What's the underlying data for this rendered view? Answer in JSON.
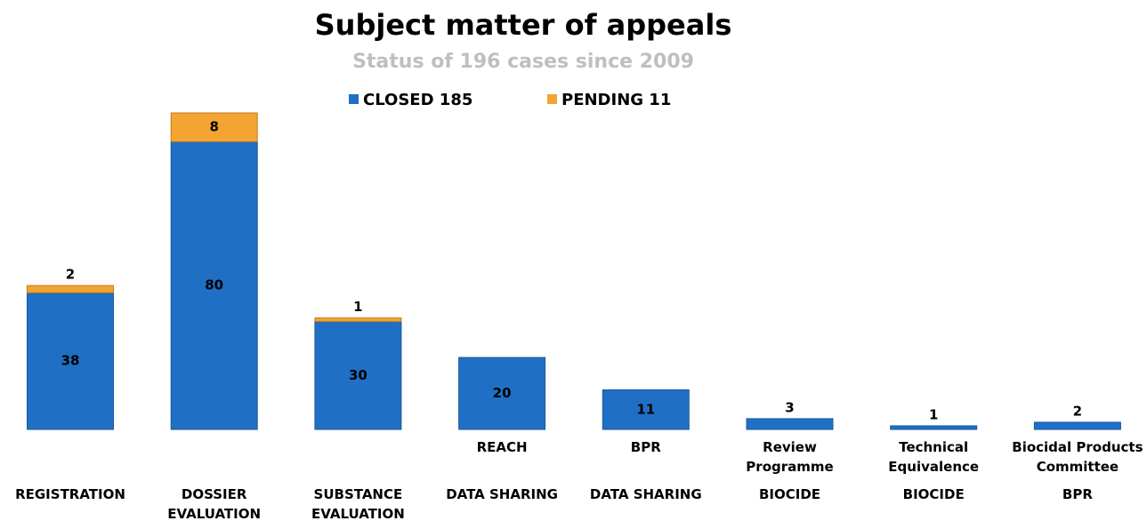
{
  "chart_data": {
    "type": "stacked-bar",
    "title": "Subject matter of appeals",
    "subtitle": "Status of 196 cases since 2009",
    "categories": [
      "REGISTRATION",
      "DOSSIER EVALUATION",
      "SUBSTANCE EVALUATION",
      "DATA SHARING",
      "DATA SHARING",
      "BIOCIDE",
      "BIOCIDE",
      "BPR"
    ],
    "subcategories": [
      null,
      null,
      null,
      "REACH",
      "BPR",
      "Review Programme",
      "Technical Equivalence",
      "Biocidal Products Committee"
    ],
    "series": [
      {
        "name": "CLOSED 185",
        "color": "#1f6fc5",
        "values": [
          38,
          80,
          30,
          20,
          11,
          3,
          1,
          2
        ]
      },
      {
        "name": "PENDING 11",
        "color": "#f4a433",
        "values": [
          2,
          8,
          1,
          null,
          null,
          null,
          null,
          null
        ]
      }
    ],
    "legend": "top"
  }
}
